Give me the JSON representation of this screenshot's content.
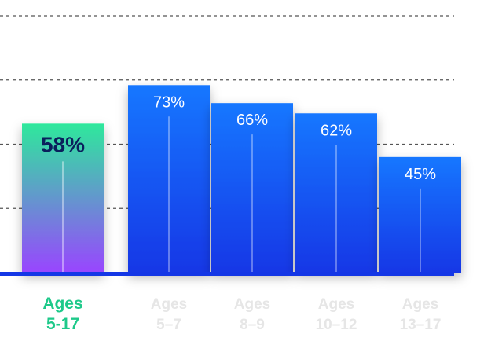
{
  "chart_data": {
    "type": "bar",
    "categories": [
      "Ages\n5-17",
      "Ages\n5–7",
      "Ages\n8–9",
      "Ages\n10–12",
      "Ages\n13–17"
    ],
    "values": [
      58,
      73,
      66,
      62,
      45
    ],
    "value_labels": [
      "58%",
      "73%",
      "66%",
      "62%",
      "45%"
    ],
    "highlight_index": 0,
    "ylim": [
      0,
      100
    ],
    "grid": true,
    "grid_values": [
      25,
      50,
      75,
      100
    ],
    "title": "",
    "xlabel": "",
    "ylabel": ""
  },
  "colors": {
    "bar_top": "#1677ff",
    "bar_bottom": "#1437e6",
    "highlight_top": "#2ee89c",
    "highlight_bottom": "#9945ff",
    "highlight_label": "#1ec98a",
    "highlight_value_text": "#0a1f5c",
    "muted_label": "#e6e6e6",
    "baseline": "#1437e6",
    "grid": "#555555"
  }
}
